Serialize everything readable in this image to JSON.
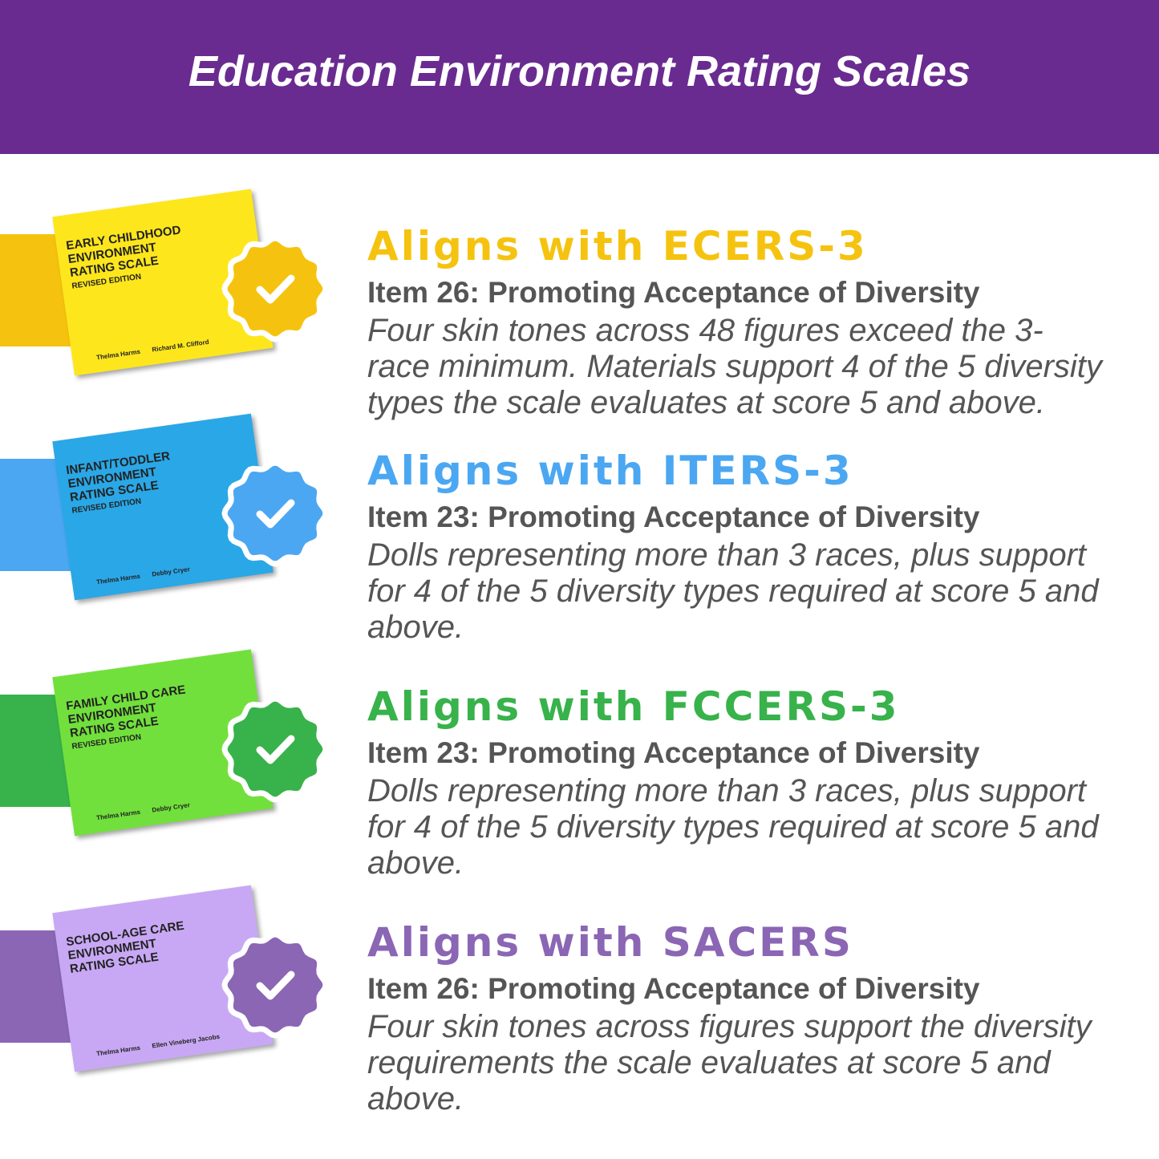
{
  "header": {
    "title": "Education Environment Rating Scales"
  },
  "items": [
    {
      "color": "#f5c30f",
      "cover_color": "#fde61c",
      "cover": {
        "title_lines": [
          "EARLY CHILDHOOD",
          "ENVIRONMENT",
          "RATING SCALE"
        ],
        "edition": "REVISED EDITION",
        "authors": [
          "Thelma Harms",
          "Richard M. Clifford"
        ]
      },
      "heading": "Aligns with ECERS-3",
      "item": "Item 26: Promoting Acceptance of Diversity",
      "description": "Four skin tones across 48 figures exceed the 3-race minimum. Materials support 4 of the 5 diversity types the scale evaluates at score 5 and above."
    },
    {
      "color": "#4ba7f2",
      "cover_color": "#2aa7e6",
      "cover": {
        "title_lines": [
          "INFANT/TODDLER",
          "ENVIRONMENT",
          "RATING SCALE"
        ],
        "edition": "REVISED EDITION",
        "authors": [
          "Thelma Harms",
          "Debby Cryer"
        ]
      },
      "heading": "Aligns with ITERS-3",
      "item": "Item 23: Promoting Acceptance of Diversity",
      "description": "Dolls representing more than 3 races, plus support for 4 of the 5 diversity types required at score 5 and above."
    },
    {
      "color": "#38b24a",
      "cover_color": "#72e03c",
      "cover": {
        "title_lines": [
          "FAMILY CHILD CARE",
          "ENVIRONMENT",
          "RATING SCALE"
        ],
        "edition": "REVISED EDITION",
        "authors": [
          "Thelma Harms",
          "Debby Cryer"
        ]
      },
      "heading": "Aligns with FCCERS-3",
      "item": "Item 23: Promoting Acceptance of Diversity",
      "description": "Dolls representing more than 3 races, plus support for 4 of the 5 diversity types required at score 5 and above."
    },
    {
      "color": "#8a66b4",
      "cover_color": "#c8a8f4",
      "cover": {
        "title_lines": [
          "SCHOOL-AGE CARE",
          "ENVIRONMENT",
          "RATING SCALE"
        ],
        "authors": [
          "Thelma Harms",
          "Ellen Vineberg Jacobs"
        ]
      },
      "heading": "Aligns with SACERS",
      "item": "Item 26: Promoting Acceptance of Diversity",
      "description": "Four skin tones across figures support the diversity requirements the scale evaluates at score 5 and above."
    }
  ]
}
